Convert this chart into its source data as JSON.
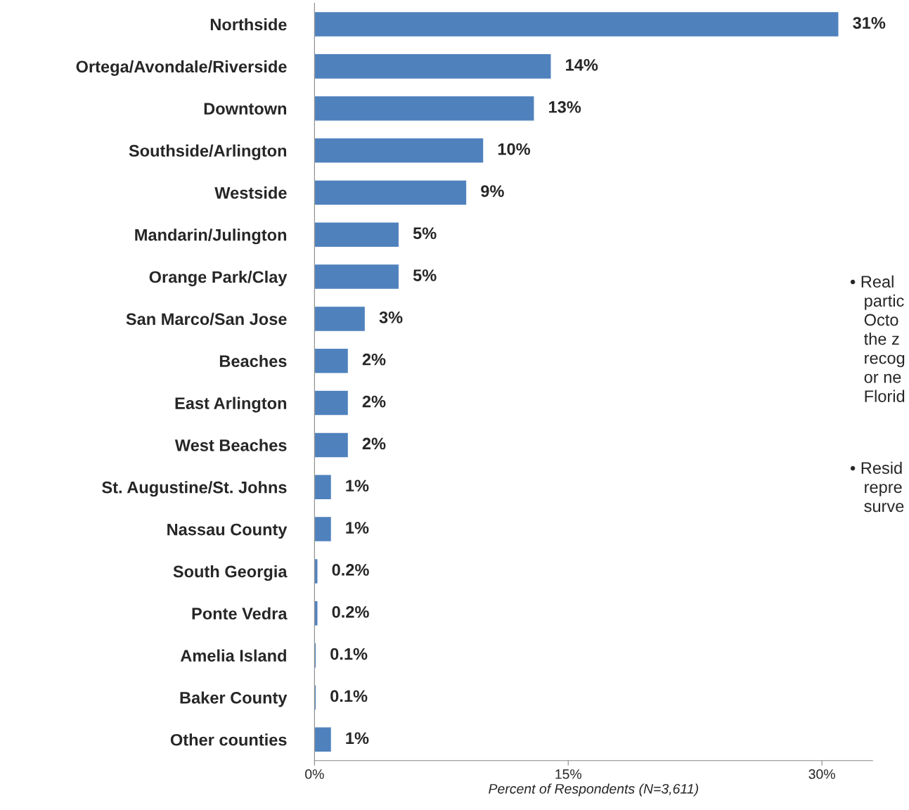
{
  "chart_data": {
    "type": "bar",
    "orientation": "horizontal",
    "categories": [
      "Northside",
      "Ortega/Avondale/Riverside",
      "Downtown",
      "Southside/Arlington",
      "Westside",
      "Mandarin/Julington",
      "Orange Park/Clay",
      "San Marco/San Jose",
      "Beaches",
      "East Arlington",
      "West Beaches",
      "St. Augustine/St. Johns",
      "Nassau County",
      "South Georgia",
      "Ponte Vedra",
      "Amelia Island",
      "Baker County",
      "Other counties"
    ],
    "values": [
      31,
      14,
      13,
      10,
      9,
      5,
      5,
      3,
      2,
      2,
      2,
      1,
      1,
      0.2,
      0.2,
      0.1,
      0.1,
      1
    ],
    "value_labels": [
      "31%",
      "14%",
      "13%",
      "10%",
      "9%",
      "5%",
      "5%",
      "3%",
      "2%",
      "2%",
      "2%",
      "1%",
      "1%",
      "0.2%",
      "0.2%",
      "0.1%",
      "0.1%",
      "1%"
    ],
    "color": "#4f81bd",
    "xlabel": "Percent of Respondents (N=3,611)",
    "xlim": [
      0,
      33
    ],
    "xticks": [
      {
        "value": 0,
        "label": "0%"
      },
      {
        "value": 15,
        "label": "15%"
      },
      {
        "value": 30,
        "label": "30%"
      }
    ],
    "grid": false,
    "legend": false,
    "annotations": [
      "• Real\n   partic\n   Octo\n   the z\n   recog\n   or ne\n   Florid",
      "• Resid\n   repre\n   surve"
    ]
  }
}
